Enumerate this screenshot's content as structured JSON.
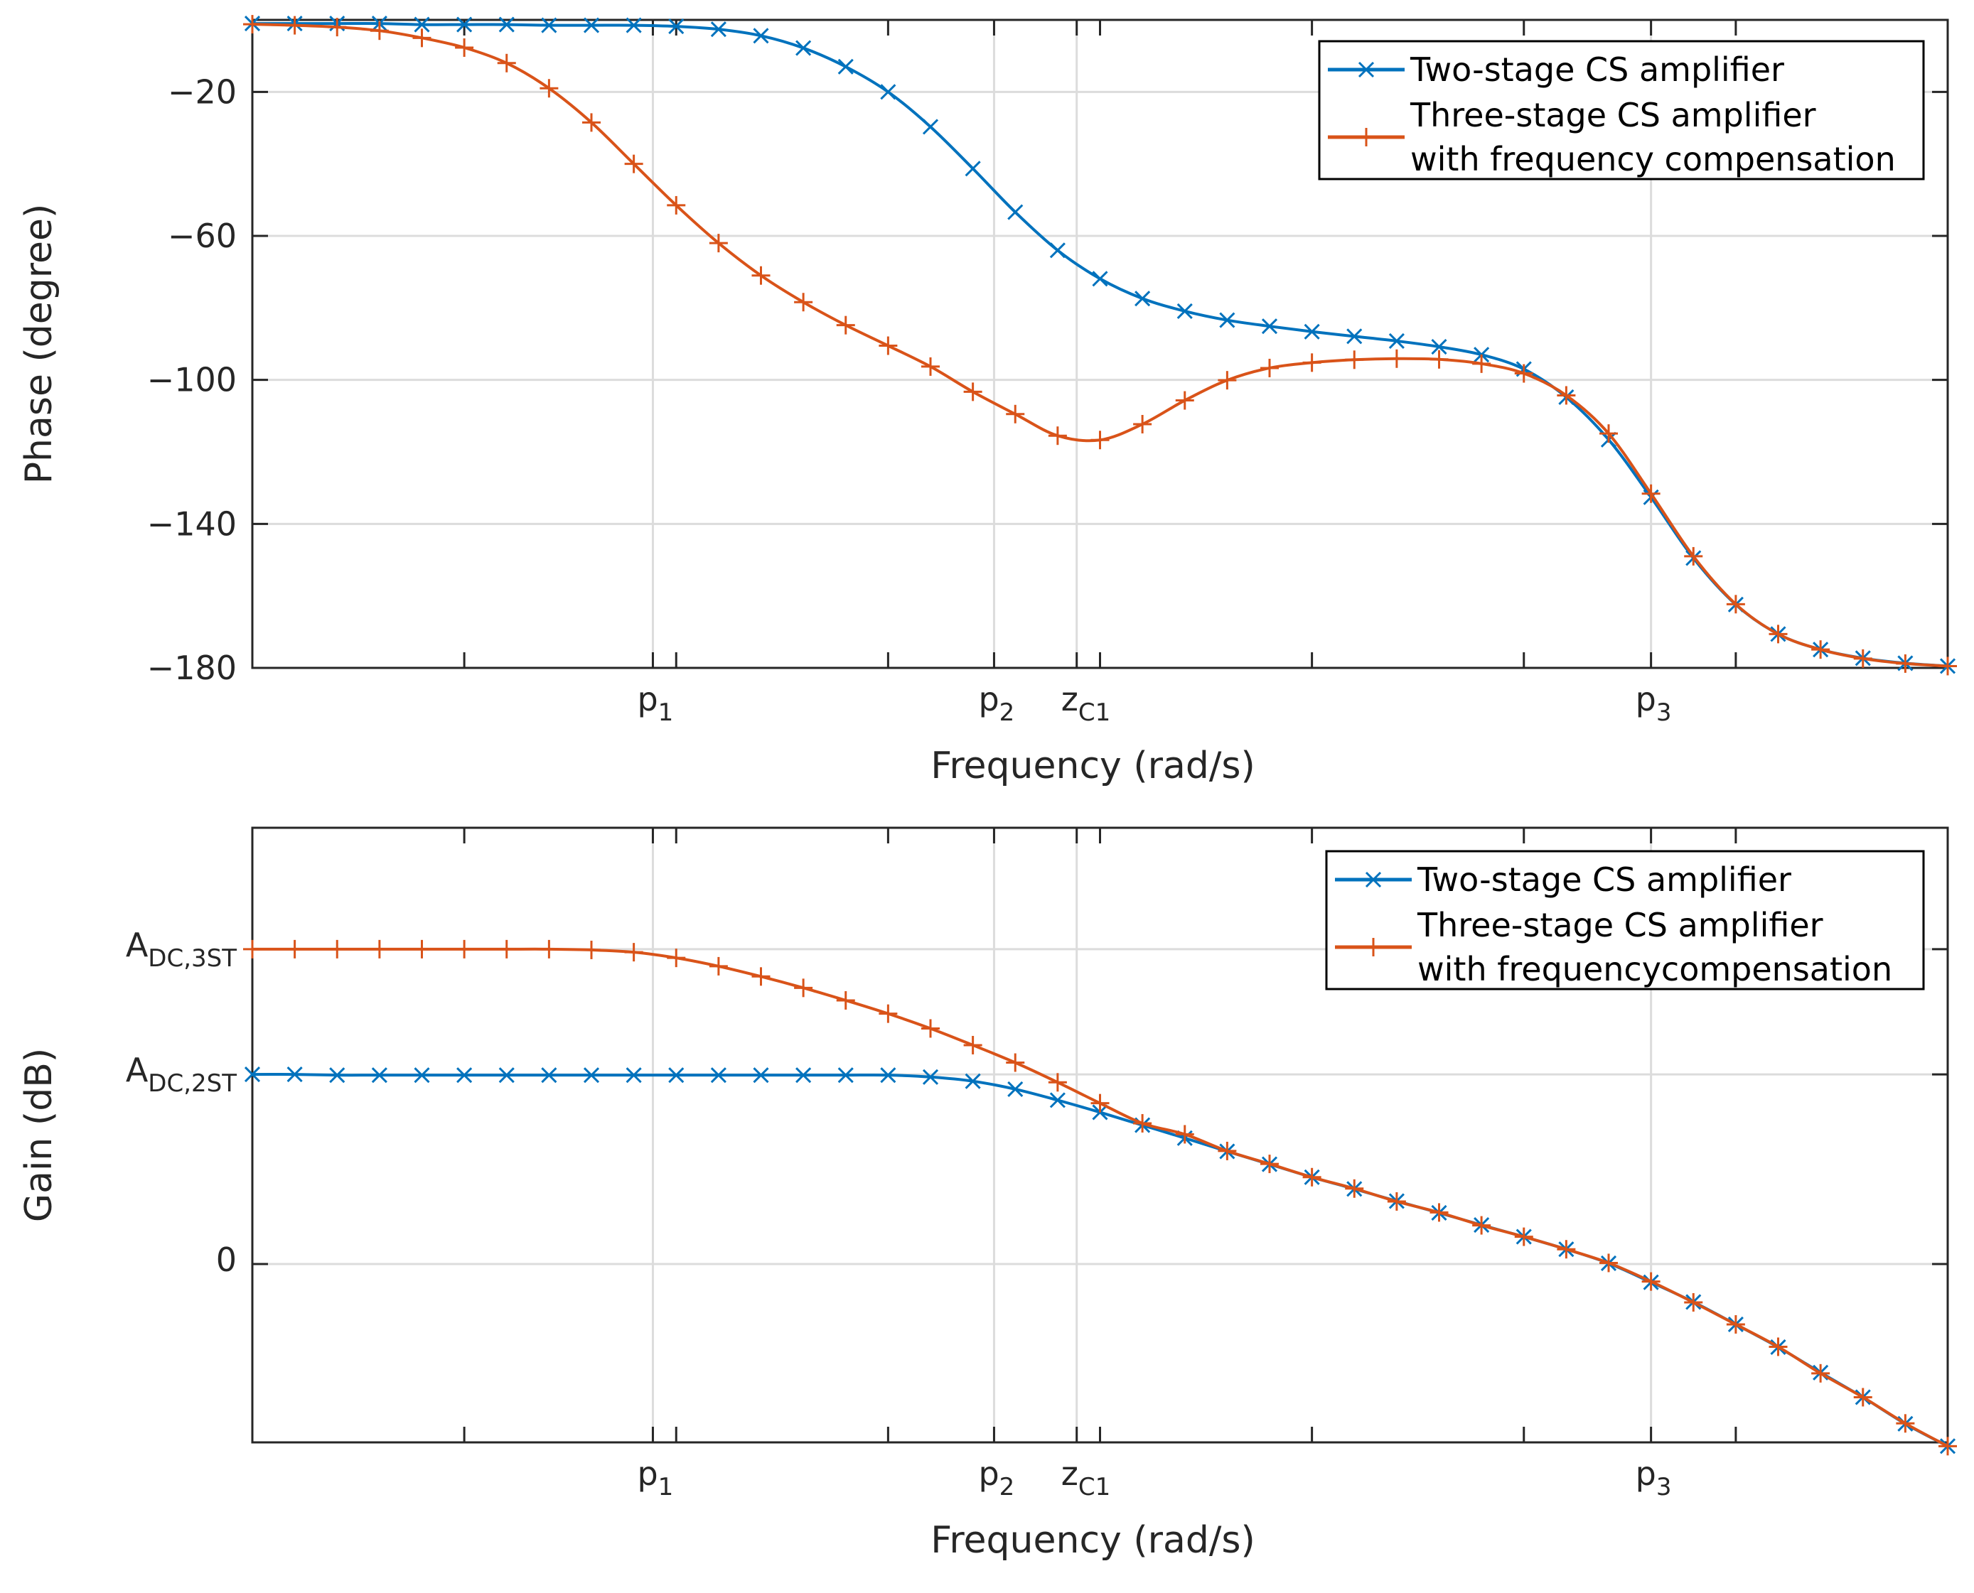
{
  "colors": {
    "two_stage": "#0072bd",
    "three_stage": "#d95319",
    "grid": "#dcdcdc",
    "axis": "#262626"
  },
  "chart_data": [
    {
      "type": "line",
      "name": "phase",
      "xlabel": "Frequency (rad/s)",
      "ylabel": "Phase (degree)",
      "xscale": "log10 (unitless decades, 0 to 8)",
      "xlim": [
        0,
        8
      ],
      "ylim": [
        -180,
        0
      ],
      "yticks": [
        -180,
        -140,
        -100,
        -60,
        -20
      ],
      "ytick_labels": [
        "−180",
        "−140",
        "−100",
        "−60",
        "−20"
      ],
      "special_xticks": [
        {
          "x": 1.89,
          "base": "p",
          "sub": "1"
        },
        {
          "x": 3.5,
          "base": "p",
          "sub": "2"
        },
        {
          "x": 3.89,
          "base": "z",
          "sub": "C1"
        },
        {
          "x": 6.6,
          "base": "p",
          "sub": "3"
        }
      ],
      "minor_xticks": [
        0,
        1,
        2,
        3,
        4,
        5,
        6,
        7,
        8
      ],
      "legend": {
        "placement": "top-right",
        "entries": [
          {
            "lines": [
              "Two-stage CS amplifier"
            ]
          },
          {
            "lines": [
              "Three-stage CS amplifier",
              "with frequency compensation"
            ]
          }
        ]
      },
      "series": [
        {
          "name": "Two-stage CS amplifier",
          "marker": "x",
          "x": [
            0,
            0.2,
            0.4,
            0.6,
            0.8,
            1.0,
            1.2,
            1.4,
            1.6,
            1.8,
            2.0,
            2.2,
            2.4,
            2.6,
            2.8,
            3.0,
            3.2,
            3.4,
            3.6,
            3.8,
            4.0,
            4.2,
            4.4,
            4.6,
            4.8,
            5.0,
            5.2,
            5.4,
            5.6,
            5.8,
            6.0,
            6.2,
            6.4,
            6.6,
            6.8,
            7.0,
            7.2,
            7.4,
            7.6,
            7.8,
            8.0
          ],
          "y": [
            -1,
            -1,
            -1,
            -1,
            -1.3,
            -1.3,
            -1.3,
            -1.5,
            -1.5,
            -1.5,
            -1.8,
            -2.6,
            -4.4,
            -7.8,
            -13,
            -20,
            -29.7,
            -41.3,
            -53.4,
            -64,
            -71.9,
            -77.4,
            -80.9,
            -83.4,
            -85.1,
            -86.6,
            -87.9,
            -89.2,
            -90.8,
            -93,
            -97,
            -104.8,
            -116.6,
            -132.6,
            -149.5,
            -162.4,
            -170.6,
            -174.9,
            -177.3,
            -178.7,
            -179.5
          ]
        },
        {
          "name": "Three-stage CS amplifier with frequency compensation",
          "marker": "+",
          "x": [
            0,
            0.2,
            0.4,
            0.6,
            0.8,
            1.0,
            1.2,
            1.4,
            1.6,
            1.8,
            2.0,
            2.2,
            2.4,
            2.6,
            2.8,
            3.0,
            3.2,
            3.4,
            3.6,
            3.8,
            4.0,
            4.2,
            4.4,
            4.6,
            4.8,
            5.0,
            5.2,
            5.4,
            5.6,
            5.8,
            6.0,
            6.2,
            6.4,
            6.6,
            6.8,
            7.0,
            7.2,
            7.4,
            7.6,
            7.8,
            8.0
          ],
          "y": [
            -1.2,
            -1.5,
            -2,
            -3,
            -5,
            -7.7,
            -12,
            -19,
            -28.5,
            -40,
            -51.5,
            -62,
            -71,
            -78.4,
            -84.8,
            -90.5,
            -96.3,
            -103.3,
            -109.5,
            -115.5,
            -116.7,
            -112.3,
            -105.7,
            -100.1,
            -96.7,
            -95.2,
            -94.4,
            -94.1,
            -94.3,
            -95.5,
            -98.2,
            -104.3,
            -114.9,
            -131.6,
            -149,
            -162.3,
            -170.6,
            -174.9,
            -177.4,
            -178.8,
            -179.5
          ]
        }
      ]
    },
    {
      "type": "line",
      "name": "gain",
      "xlabel": "Frequency (rad/s)",
      "ylabel": "Gain (dB)",
      "xscale": "log10 (unitless decades, 0 to 8)",
      "xlim": [
        0,
        8
      ],
      "ylim": [
        -47,
        115
      ],
      "yticks": [
        0,
        50,
        83
      ],
      "ytick_labels": [
        {
          "base": "0",
          "sub": ""
        },
        {
          "base": "A",
          "sub": "DC,2ST"
        },
        {
          "base": "A",
          "sub": "DC,3ST"
        }
      ],
      "special_xticks": [
        {
          "x": 1.89,
          "base": "p",
          "sub": "1"
        },
        {
          "x": 3.5,
          "base": "p",
          "sub": "2"
        },
        {
          "x": 3.89,
          "base": "z",
          "sub": "C1"
        },
        {
          "x": 6.6,
          "base": "p",
          "sub": "3"
        }
      ],
      "minor_xticks": [
        0,
        1,
        2,
        3,
        4,
        5,
        6,
        7,
        8
      ],
      "legend": {
        "placement": "top-right",
        "entries": [
          {
            "lines": [
              "Two-stage CS amplifier"
            ]
          },
          {
            "lines": [
              "Three-stage CS amplifier",
              "with frequencycompensation"
            ]
          }
        ]
      },
      "series": [
        {
          "name": "Two-stage CS amplifier",
          "marker": "x",
          "x": [
            0,
            0.2,
            0.4,
            0.6,
            0.8,
            1.0,
            1.2,
            1.4,
            1.6,
            1.8,
            2.0,
            2.2,
            2.4,
            2.6,
            2.8,
            3.0,
            3.2,
            3.4,
            3.6,
            3.8,
            4.0,
            4.2,
            4.4,
            4.6,
            4.8,
            5.0,
            5.2,
            5.4,
            5.6,
            5.8,
            6.0,
            6.2,
            6.4,
            6.6,
            6.8,
            7.0,
            7.2,
            7.4,
            7.6,
            7.8,
            8.0
          ],
          "y": [
            50,
            50,
            49.8,
            49.8,
            49.8,
            49.8,
            49.8,
            49.8,
            49.8,
            49.8,
            49.8,
            49.8,
            49.8,
            49.8,
            49.8,
            49.8,
            49.3,
            48.2,
            46.1,
            43.2,
            40,
            36.6,
            33.2,
            29.7,
            26.3,
            22.9,
            19.8,
            16.6,
            13.5,
            10.3,
            7.2,
            3.9,
            0.2,
            -4.8,
            -10,
            -15.9,
            -21.9,
            -28.6,
            -35.1,
            -42.1,
            -48
          ]
        },
        {
          "name": "Three-stage CS amplifier with frequency compensation",
          "marker": "+",
          "x": [
            0,
            0.2,
            0.4,
            0.6,
            0.8,
            1.0,
            1.2,
            1.4,
            1.6,
            1.8,
            2.0,
            2.2,
            2.4,
            2.6,
            2.8,
            3.0,
            3.2,
            3.4,
            3.6,
            3.8,
            4.0,
            4.2,
            4.4,
            4.6,
            4.8,
            5.0,
            5.2,
            5.4,
            5.6,
            5.8,
            6.0,
            6.2,
            6.4,
            6.6,
            6.8,
            7.0,
            7.2,
            7.4,
            7.6,
            7.8,
            8.0
          ],
          "y": [
            83,
            83,
            83,
            83,
            83,
            83,
            83,
            83,
            82.8,
            82.2,
            80.7,
            78.5,
            75.8,
            72.8,
            69.5,
            66,
            62.1,
            57.7,
            53.1,
            47.9,
            42.4,
            37.1,
            34.2,
            29.8,
            26.4,
            22.9,
            19.9,
            16.5,
            13.6,
            10.2,
            7.2,
            3.9,
            0.3,
            -4.6,
            -10.1,
            -15.9,
            -21.8,
            -28.8,
            -35.1,
            -42,
            -48
          ]
        }
      ]
    }
  ]
}
